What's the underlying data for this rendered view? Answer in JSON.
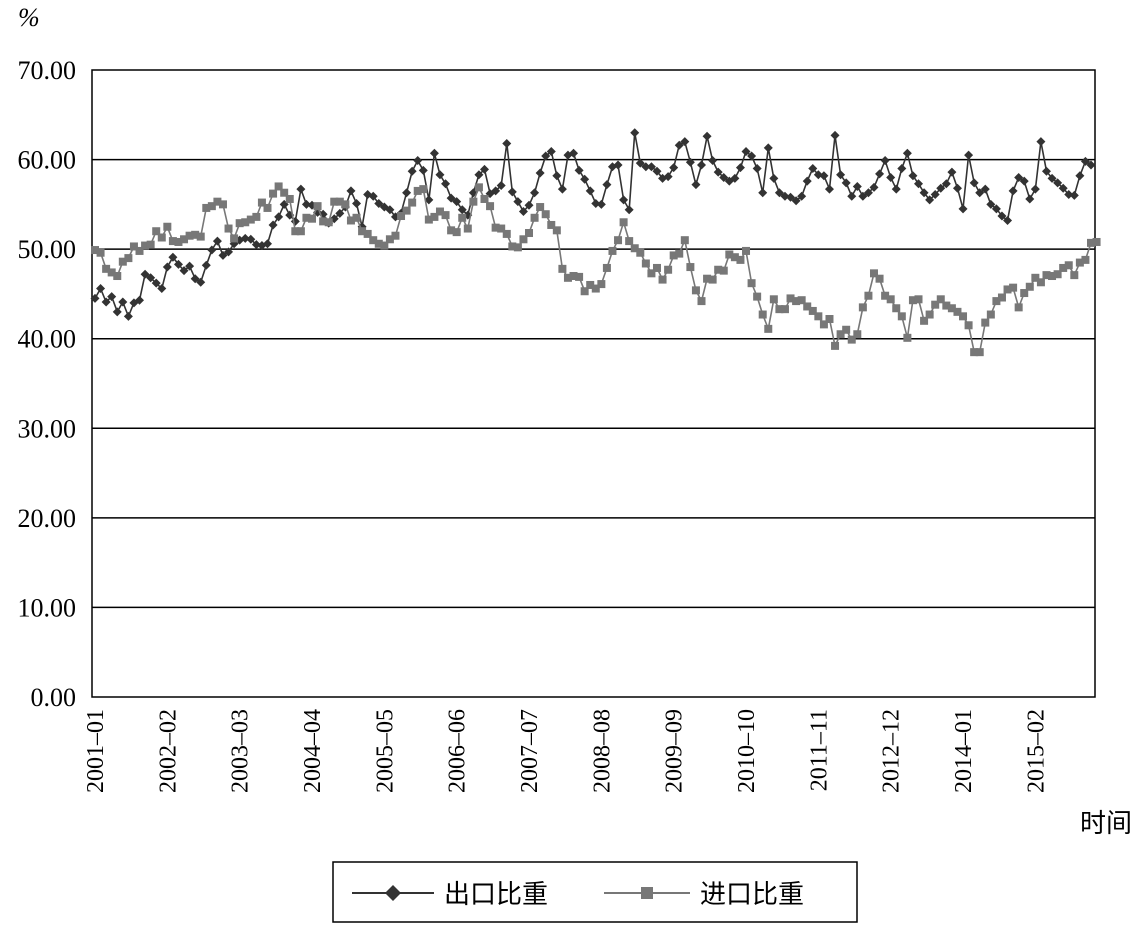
{
  "chart_data": {
    "type": "line",
    "ylabel": "%",
    "xlabel": "时间",
    "ylim": [
      0,
      70
    ],
    "yticks": [
      "0.00",
      "10.00",
      "20.00",
      "30.00",
      "40.00",
      "50.00",
      "60.00",
      "70.00"
    ],
    "xticks": [
      "2001–01",
      "2002–02",
      "2003–03",
      "2004–04",
      "2005–05",
      "2006–06",
      "2007–07",
      "2008–08",
      "2009–09",
      "2010–10",
      "2011–11",
      "2012–12",
      "2014–01",
      "2015–02"
    ],
    "grid": true,
    "legend_position": "bottom",
    "series": [
      {
        "name": "出口比重",
        "color": "#333333",
        "marker": "diamond",
        "values": [
          44.5,
          45.6,
          44.1,
          44.7,
          43.0,
          44.1,
          42.5,
          44.0,
          44.3,
          47.2,
          46.8,
          46.2,
          45.6,
          48.0,
          49.1,
          48.3,
          47.6,
          48.1,
          46.7,
          46.3,
          48.2,
          49.9,
          50.9,
          49.3,
          49.7,
          50.6,
          51.0,
          51.2,
          51.1,
          50.5,
          50.4,
          50.6,
          52.7,
          53.6,
          55.0,
          53.8,
          53.1,
          56.7,
          55.0,
          54.9,
          54.1,
          53.9,
          52.9,
          53.4,
          54.0,
          54.7,
          56.5,
          55.1,
          52.5,
          56.1,
          55.9,
          55.1,
          54.7,
          54.4,
          53.6,
          54.0,
          56.3,
          58.7,
          59.9,
          58.8,
          55.5,
          60.7,
          58.3,
          57.3,
          55.7,
          55.3,
          54.4,
          53.8,
          56.3,
          58.3,
          58.9,
          56.2,
          56.5,
          57.1,
          61.8,
          56.4,
          55.3,
          54.2,
          54.9,
          56.3,
          58.5,
          60.4,
          60.9,
          58.2,
          56.7,
          60.5,
          60.7,
          58.8,
          57.8,
          56.5,
          55.1,
          55.0,
          57.2,
          59.2,
          59.4,
          55.5,
          54.4,
          63.0,
          59.6,
          59.2,
          59.2,
          58.7,
          57.9,
          58.1,
          59.1,
          61.6,
          62.0,
          59.7,
          57.2,
          59.4,
          62.6,
          59.9,
          58.6,
          58.0,
          57.6,
          57.9,
          59.1,
          60.9,
          60.4,
          59.0,
          56.3,
          61.3,
          57.9,
          56.3,
          55.9,
          55.8,
          55.4,
          55.9,
          57.6,
          59.0,
          58.3,
          58.2,
          56.7,
          62.7,
          58.3,
          57.4,
          55.9,
          57.0,
          55.9,
          56.3,
          56.9,
          58.4,
          59.9,
          58.0,
          56.7,
          59.0,
          60.7,
          58.2,
          57.3,
          56.3,
          55.5,
          56.1,
          56.8,
          57.3,
          58.6,
          56.8,
          54.5,
          60.5,
          57.4,
          56.3,
          56.7,
          55.0,
          54.5,
          53.7,
          53.2,
          56.5,
          58.0,
          57.6,
          55.6,
          56.7,
          62.0,
          58.7,
          57.9,
          57.4,
          56.8,
          56.1,
          56.0,
          58.2,
          59.8,
          59.4
        ]
      },
      {
        "name": "进口比重",
        "color": "#777777",
        "marker": "square",
        "values": [
          49.9,
          49.6,
          47.8,
          47.4,
          47.0,
          48.6,
          49.0,
          50.3,
          49.8,
          50.4,
          50.5,
          52.0,
          51.3,
          52.5,
          50.9,
          50.8,
          51.1,
          51.5,
          51.6,
          51.4,
          54.6,
          54.8,
          55.3,
          55.0,
          52.3,
          51.2,
          52.9,
          53.0,
          53.3,
          53.6,
          55.2,
          54.6,
          56.2,
          57.0,
          56.3,
          55.6,
          52.0,
          52.0,
          53.5,
          53.4,
          54.8,
          53.1,
          53.0,
          55.3,
          55.3,
          55.0,
          53.2,
          53.5,
          52.0,
          51.7,
          51.0,
          50.6,
          50.4,
          51.1,
          51.5,
          53.7,
          54.3,
          55.2,
          56.5,
          56.7,
          53.3,
          53.6,
          54.2,
          53.8,
          52.1,
          51.9,
          53.5,
          52.3,
          55.3,
          56.9,
          55.6,
          54.8,
          52.4,
          52.3,
          51.7,
          50.3,
          50.2,
          51.1,
          51.8,
          53.5,
          54.7,
          53.9,
          52.7,
          52.1,
          47.8,
          46.8,
          47.0,
          46.9,
          45.3,
          46.0,
          45.6,
          46.1,
          47.9,
          49.8,
          51.0,
          53.0,
          50.9,
          50.1,
          49.6,
          48.4,
          47.3,
          47.9,
          46.6,
          47.7,
          49.3,
          49.5,
          51.0,
          48.0,
          45.4,
          44.2,
          46.7,
          46.6,
          47.7,
          47.6,
          49.4,
          49.1,
          48.8,
          49.8,
          46.2,
          44.7,
          42.7,
          41.1,
          44.4,
          43.3,
          43.3,
          44.5,
          44.2,
          44.3,
          43.6,
          43.1,
          42.5,
          41.6,
          42.2,
          39.2,
          40.5,
          41.0,
          39.9,
          40.5,
          43.5,
          44.8,
          47.3,
          46.7,
          44.8,
          44.4,
          43.4,
          42.5,
          40.1,
          44.3,
          44.4,
          42.0,
          42.7,
          43.8,
          44.4,
          43.7,
          43.4,
          43.0,
          42.5,
          41.5,
          38.5,
          38.5,
          41.8,
          42.7,
          44.2,
          44.6,
          45.5,
          45.7,
          43.5,
          45.1,
          45.8,
          46.8,
          46.3,
          47.1,
          47.0,
          47.2,
          47.9,
          48.2,
          47.1,
          48.5,
          48.8,
          50.7,
          50.8
        ]
      }
    ]
  }
}
